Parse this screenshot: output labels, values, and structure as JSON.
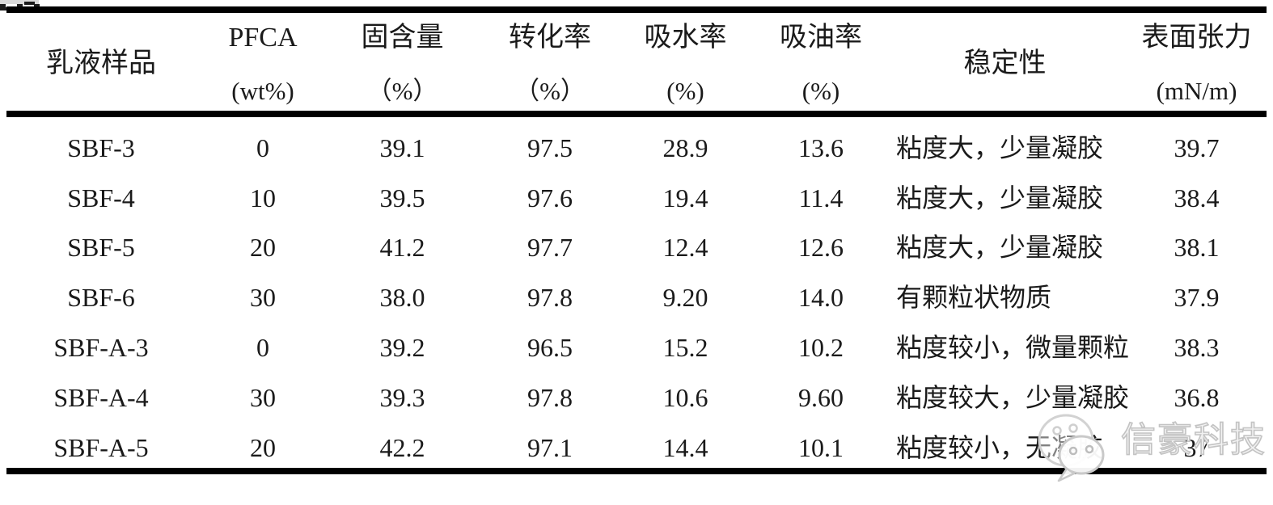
{
  "page": {
    "type": "academic-table-figure",
    "caption_cropped": true,
    "colors": {
      "background": "#ffffff",
      "text": "#1a1a1a",
      "rule": "#000000",
      "watermark_gray": "#c6c6c6"
    }
  },
  "watermark": {
    "text": "信豪科技",
    "icon": "wechat-logo"
  },
  "table": {
    "columns": [
      {
        "id": "sample",
        "title": "乳液样品",
        "unit": ""
      },
      {
        "id": "pfca",
        "title": "PFCA",
        "unit": "(wt%)"
      },
      {
        "id": "solid",
        "title": "固含量",
        "unit": "（%）"
      },
      {
        "id": "conversion",
        "title": "转化率",
        "unit": "（%）"
      },
      {
        "id": "water",
        "title": "吸水率",
        "unit": "(%)"
      },
      {
        "id": "oil",
        "title": "吸油率",
        "unit": "(%)"
      },
      {
        "id": "stability",
        "title": "稳定性",
        "unit": ""
      },
      {
        "id": "tension",
        "title": "表面张力",
        "unit": "(mN/m)"
      }
    ],
    "rows": [
      [
        "SBF-3",
        "0",
        "39.1",
        "97.5",
        "28.9",
        "13.6",
        "粘度大，少量凝胶",
        "39.7"
      ],
      [
        "SBF-4",
        "10",
        "39.5",
        "97.6",
        "19.4",
        "11.4",
        "粘度大，少量凝胶",
        "38.4"
      ],
      [
        "SBF-5",
        "20",
        "41.2",
        "97.7",
        "12.4",
        "12.6",
        "粘度大，少量凝胶",
        "38.1"
      ],
      [
        "SBF-6",
        "30",
        "38.0",
        "97.8",
        "9.20",
        "14.0",
        "有颗粒状物质",
        "37.9"
      ],
      [
        "SBF-A-3",
        "0",
        "39.2",
        "96.5",
        "15.2",
        "10.2",
        "粘度较小，微量颗粒",
        "38.3"
      ],
      [
        "SBF-A-4",
        "30",
        "39.3",
        "97.8",
        "10.6",
        "9.60",
        "粘度较大，少量凝胶",
        "36.8"
      ],
      [
        "SBF-A-5",
        "20",
        "42.2",
        "97.1",
        "14.4",
        "10.1",
        "粘度较小，无凝胶",
        "37"
      ]
    ]
  }
}
